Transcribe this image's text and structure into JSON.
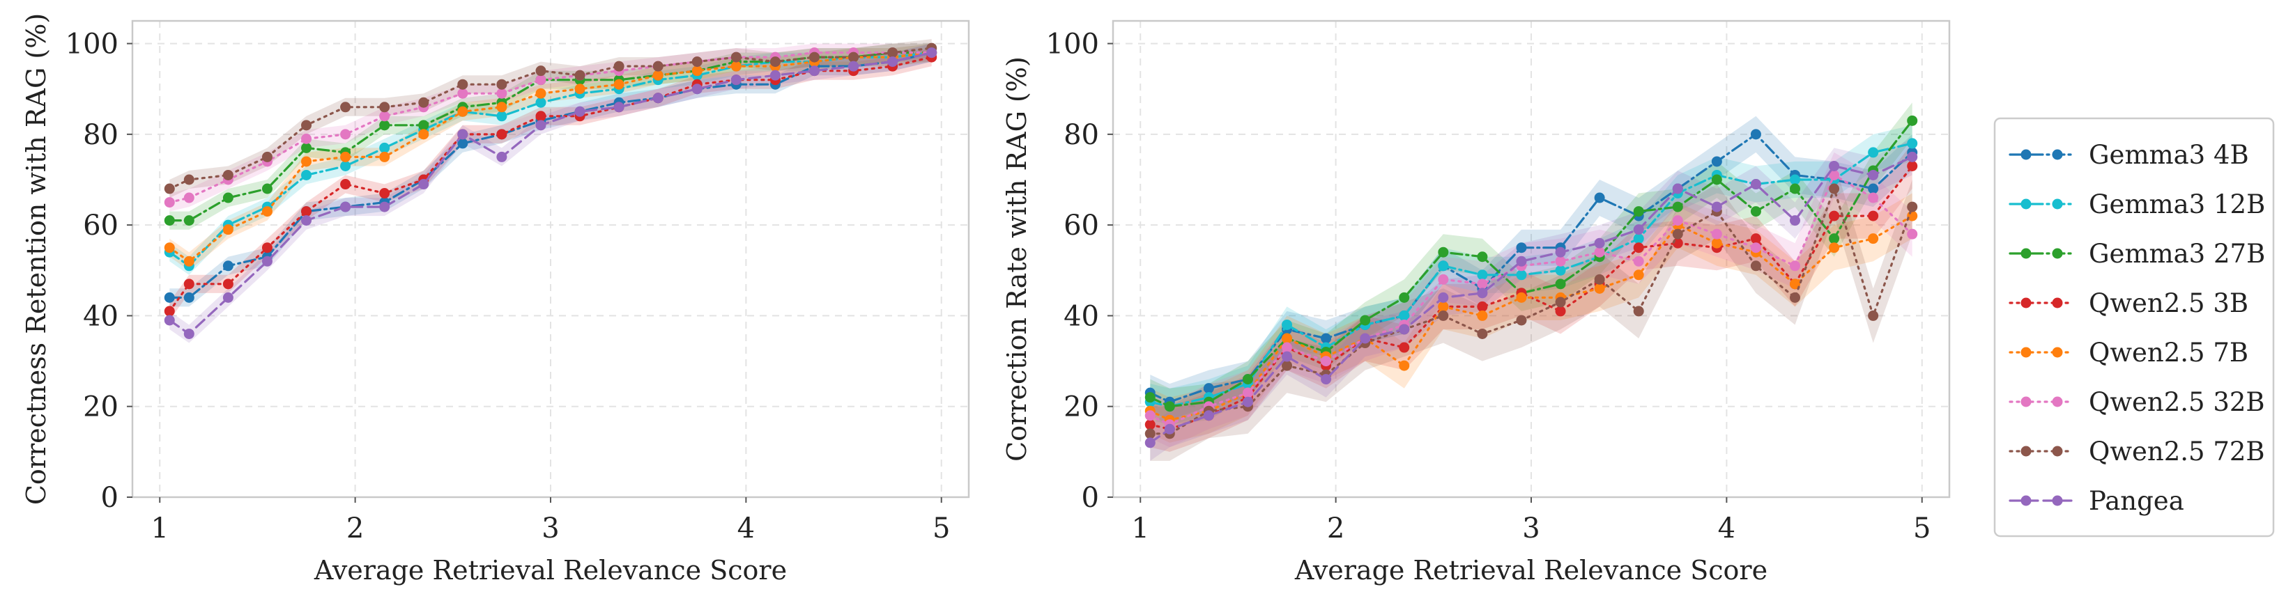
{
  "chart_data": [
    {
      "type": "line",
      "title": "",
      "xlabel": "Average Retrieval Relevance Score",
      "ylabel": "Correctness Retention with RAG (%)",
      "xlim": [
        0.86,
        5.14
      ],
      "ylim": [
        0,
        105
      ],
      "xticks": [
        "1",
        "2",
        "3",
        "4",
        "5"
      ],
      "yticks": [
        "0",
        "20",
        "40",
        "60",
        "80",
        "100"
      ],
      "grid": true,
      "x": [
        1.05,
        1.15,
        1.35,
        1.55,
        1.75,
        1.95,
        2.15,
        2.35,
        2.55,
        2.75,
        2.95,
        3.15,
        3.35,
        3.55,
        3.75,
        3.95,
        4.15,
        4.35,
        4.55,
        4.75,
        4.95
      ],
      "series": [
        {
          "name": "Gemma3 4B",
          "values": [
            44,
            44,
            51,
            53,
            63,
            64,
            65,
            70,
            78,
            80,
            83,
            85,
            87,
            88,
            90,
            91,
            91,
            95,
            95,
            96,
            98
          ],
          "band": 2
        },
        {
          "name": "Gemma3 12B",
          "values": [
            54,
            51,
            60,
            64,
            71,
            73,
            77,
            81,
            85,
            84,
            87,
            89,
            90,
            92,
            93,
            95,
            96,
            96,
            97,
            97,
            98
          ],
          "band": 2
        },
        {
          "name": "Gemma3 27B",
          "values": [
            61,
            61,
            66,
            68,
            77,
            76,
            82,
            82,
            86,
            87,
            92,
            92,
            92,
            93,
            94,
            96,
            96,
            97,
            97,
            98,
            98
          ],
          "band": 2
        },
        {
          "name": "Qwen2.5 3B",
          "values": [
            41,
            47,
            47,
            55,
            63,
            69,
            67,
            70,
            80,
            80,
            84,
            84,
            86,
            88,
            91,
            92,
            92,
            94,
            94,
            95,
            97
          ],
          "band": 2
        },
        {
          "name": "Qwen2.5 7B",
          "values": [
            55,
            52,
            59,
            63,
            74,
            75,
            75,
            80,
            85,
            86,
            89,
            90,
            91,
            93,
            94,
            95,
            95,
            96,
            97,
            97,
            98
          ],
          "band": 2
        },
        {
          "name": "Qwen2.5 32B",
          "values": [
            65,
            66,
            70,
            74,
            79,
            80,
            84,
            86,
            89,
            89,
            92,
            93,
            94,
            95,
            96,
            97,
            97,
            98,
            98,
            98,
            98
          ],
          "band": 2
        },
        {
          "name": "Qwen2.5 72B",
          "values": [
            68,
            70,
            71,
            75,
            82,
            86,
            86,
            87,
            91,
            91,
            94,
            93,
            95,
            95,
            96,
            97,
            96,
            97,
            97,
            98,
            99
          ],
          "band": 2
        },
        {
          "name": "Pangea",
          "values": [
            39,
            36,
            44,
            52,
            61,
            64,
            64,
            69,
            80,
            75,
            82,
            85,
            86,
            88,
            90,
            92,
            93,
            94,
            95,
            96,
            98
          ],
          "band": 2
        }
      ]
    },
    {
      "type": "line",
      "title": "",
      "xlabel": "Average Retrieval Relevance Score",
      "ylabel": "Correction Rate with RAG (%)",
      "xlim": [
        0.86,
        5.14
      ],
      "ylim": [
        0,
        105
      ],
      "xticks": [
        "1",
        "2",
        "3",
        "4",
        "5"
      ],
      "yticks": [
        "0",
        "20",
        "40",
        "60",
        "80",
        "100"
      ],
      "grid": true,
      "x": [
        1.05,
        1.15,
        1.35,
        1.55,
        1.75,
        1.95,
        2.15,
        2.35,
        2.55,
        2.75,
        2.95,
        3.15,
        3.35,
        3.55,
        3.75,
        3.95,
        4.15,
        4.35,
        4.55,
        4.75,
        4.95
      ],
      "series": [
        {
          "name": "Gemma3 4B",
          "values": [
            23,
            21,
            24,
            26,
            37,
            35,
            38,
            40,
            51,
            46,
            55,
            55,
            66,
            62,
            68,
            74,
            80,
            71,
            70,
            68,
            76
          ],
          "band": 4
        },
        {
          "name": "Gemma3 12B",
          "values": [
            21,
            20,
            22,
            25,
            38,
            33,
            38,
            40,
            51,
            49,
            49,
            50,
            53,
            57,
            67,
            71,
            69,
            70,
            70,
            76,
            78
          ],
          "band": 4
        },
        {
          "name": "Gemma3 27B",
          "values": [
            22,
            20,
            21,
            26,
            35,
            32,
            39,
            44,
            54,
            53,
            45,
            47,
            53,
            63,
            64,
            70,
            63,
            68,
            57,
            72,
            83
          ],
          "band": 4
        },
        {
          "name": "Qwen2.5 3B",
          "values": [
            16,
            15,
            18,
            22,
            33,
            29,
            35,
            33,
            42,
            42,
            45,
            41,
            47,
            55,
            56,
            55,
            57,
            47,
            62,
            62,
            73
          ],
          "band": 5
        },
        {
          "name": "Qwen2.5 7B",
          "values": [
            19,
            17,
            19,
            23,
            35,
            31,
            35,
            29,
            42,
            40,
            44,
            44,
            46,
            49,
            60,
            56,
            54,
            47,
            55,
            57,
            62
          ],
          "band": 5
        },
        {
          "name": "Qwen2.5 32B",
          "values": [
            18,
            16,
            20,
            23,
            33,
            30,
            35,
            38,
            48,
            47,
            51,
            52,
            54,
            52,
            61,
            58,
            55,
            51,
            71,
            66,
            58
          ],
          "band": 5
        },
        {
          "name": "Qwen2.5 72B",
          "values": [
            14,
            14,
            19,
            20,
            29,
            27,
            34,
            37,
            40,
            36,
            39,
            43,
            48,
            41,
            58,
            63,
            51,
            44,
            68,
            40,
            64
          ],
          "band": 6
        },
        {
          "name": "Pangea",
          "values": [
            12,
            15,
            18,
            21,
            31,
            26,
            35,
            37,
            44,
            45,
            52,
            54,
            56,
            59,
            68,
            64,
            69,
            61,
            73,
            71,
            75
          ],
          "band": 4
        }
      ]
    }
  ],
  "legend": {
    "placement": "right",
    "entries": [
      {
        "label": "Gemma3 4B",
        "color": "#1f77b4",
        "dash": "dashdot"
      },
      {
        "label": "Gemma3 12B",
        "color": "#17becf",
        "dash": "dashdot"
      },
      {
        "label": "Gemma3 27B",
        "color": "#2ca02c",
        "dash": "dashdot"
      },
      {
        "label": "Qwen2.5 3B",
        "color": "#d62728",
        "dash": "dotted"
      },
      {
        "label": "Qwen2.5 7B",
        "color": "#ff7f0e",
        "dash": "dotted"
      },
      {
        "label": "Qwen2.5 32B",
        "color": "#e377c2",
        "dash": "dotted"
      },
      {
        "label": "Qwen2.5 72B",
        "color": "#8c564b",
        "dash": "dotted"
      },
      {
        "label": "Pangea",
        "color": "#9467bd",
        "dash": "dashed"
      }
    ]
  }
}
